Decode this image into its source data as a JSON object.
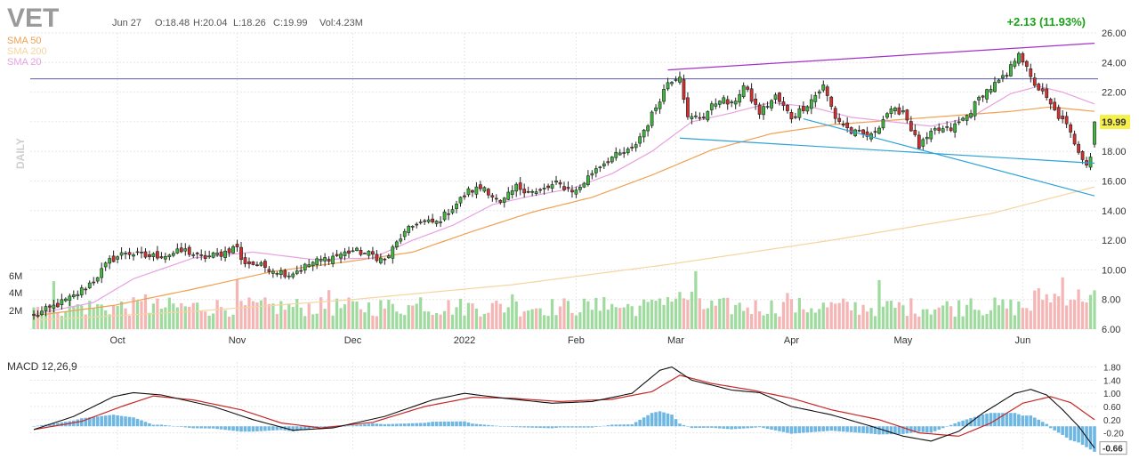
{
  "header": {
    "ticker": "VET",
    "date": "Jun 27",
    "open": "O:18.48",
    "high": "H:20.04",
    "low": "L:18.26",
    "close": "C:19.99",
    "volume": "Vol:4.23M",
    "change": "+2.13 (11.93%)"
  },
  "colors": {
    "up": "#3db83d",
    "down": "#d32f2f",
    "volume_up": "#9fdb9f",
    "volume_down": "#f5b5b5",
    "sma50": "#f0a050",
    "sma200": "#f5d5a0",
    "sma20": "#e7a2e0",
    "macd_line": "#111111",
    "signal_line": "#c62828",
    "histogram": "#6fb7e3",
    "trend_purple": "#a332c9",
    "trend_blue": "#2ea3d8",
    "horizontal_line": "#5b5ba6",
    "change_text": "#1aa31a",
    "price_badge": "#f6f04a"
  },
  "legend": [
    {
      "label": "SMA 50",
      "color": "#f0a050"
    },
    {
      "label": "SMA 200",
      "color": "#f5d5a0"
    },
    {
      "label": "SMA 20",
      "color": "#e7a2e0"
    }
  ],
  "timeframe_label": "DAILY",
  "price_axis": {
    "ticks": [
      "26.00",
      "24.00",
      "22.00",
      "20.00",
      "18.00",
      "16.00",
      "14.00",
      "12.00",
      "10.00",
      "8.00",
      "6.00"
    ],
    "current_price": "19.99",
    "min": 6,
    "max": 26
  },
  "volume_axis": {
    "ticks": [
      "6M",
      "4M",
      "2M"
    ]
  },
  "months": [
    "Oct",
    "Nov",
    "Dec",
    "2022",
    "Feb",
    "Mar",
    "Apr",
    "May",
    "Jun"
  ],
  "macd": {
    "label": "MACD 12,26,9",
    "ticks": [
      "1.80",
      "1.40",
      "1.00",
      "0.60",
      "0.20",
      "-0.20"
    ],
    "current": "-0.66"
  },
  "chart_data": {
    "type": "candlestick",
    "title": "VET",
    "price_range": [
      6,
      26
    ],
    "horizontal_level": 22.9,
    "months": [
      "Oct",
      "Nov",
      "Dec",
      "2022",
      "Feb",
      "Mar",
      "Apr",
      "May",
      "Jun"
    ],
    "close_anchors": [
      [
        0,
        6.9
      ],
      [
        4,
        7.4
      ],
      [
        10,
        8.2
      ],
      [
        15,
        9.3
      ],
      [
        19,
        10.6
      ],
      [
        23,
        11.2
      ],
      [
        28,
        10.9
      ],
      [
        33,
        11.0
      ],
      [
        38,
        11.3
      ],
      [
        42,
        10.8
      ],
      [
        47,
        11.1
      ],
      [
        51,
        11.6
      ],
      [
        52,
        10.6
      ],
      [
        58,
        10.2
      ],
      [
        64,
        9.7
      ],
      [
        70,
        10.5
      ],
      [
        75,
        10.9
      ],
      [
        80,
        11.3
      ],
      [
        85,
        11.0
      ],
      [
        88,
        10.6
      ],
      [
        92,
        12.2
      ],
      [
        96,
        13.2
      ],
      [
        101,
        13.2
      ],
      [
        105,
        14.2
      ],
      [
        109,
        15.3
      ],
      [
        113,
        15.6
      ],
      [
        117,
        14.4
      ],
      [
        121,
        15.6
      ],
      [
        126,
        15.2
      ],
      [
        131,
        15.8
      ],
      [
        136,
        15.3
      ],
      [
        141,
        16.9
      ],
      [
        145,
        17.6
      ],
      [
        150,
        18.1
      ],
      [
        154,
        19.9
      ],
      [
        159,
        22.7
      ],
      [
        162,
        23.2
      ],
      [
        164,
        20.2
      ],
      [
        168,
        20.4
      ],
      [
        172,
        21.6
      ],
      [
        175,
        21.1
      ],
      [
        178,
        22.4
      ],
      [
        182,
        20.6
      ],
      [
        186,
        21.7
      ],
      [
        190,
        20.3
      ],
      [
        194,
        21.2
      ],
      [
        198,
        22.4
      ],
      [
        201,
        20.3
      ],
      [
        205,
        19.3
      ],
      [
        210,
        19.0
      ],
      [
        214,
        20.6
      ],
      [
        218,
        20.8
      ],
      [
        222,
        18.3
      ],
      [
        226,
        19.4
      ],
      [
        230,
        19.5
      ],
      [
        234,
        20.4
      ],
      [
        238,
        21.9
      ],
      [
        241,
        22.5
      ],
      [
        244,
        23.1
      ],
      [
        247,
        24.8
      ],
      [
        250,
        22.9
      ],
      [
        253,
        21.9
      ],
      [
        256,
        20.7
      ],
      [
        259,
        19.7
      ],
      [
        262,
        18.1
      ],
      [
        264,
        17.2
      ],
      [
        265,
        17.7
      ],
      [
        266,
        19.99
      ]
    ],
    "sma20_anchors": [
      [
        0,
        7.0
      ],
      [
        15,
        7.8
      ],
      [
        25,
        9.4
      ],
      [
        40,
        10.8
      ],
      [
        55,
        11.2
      ],
      [
        70,
        10.7
      ],
      [
        85,
        10.8
      ],
      [
        95,
        12.0
      ],
      [
        105,
        13.0
      ],
      [
        115,
        14.4
      ],
      [
        125,
        15.0
      ],
      [
        135,
        15.5
      ],
      [
        145,
        16.5
      ],
      [
        155,
        18.0
      ],
      [
        165,
        20.0
      ],
      [
        175,
        20.6
      ],
      [
        185,
        21.3
      ],
      [
        195,
        21.0
      ],
      [
        205,
        20.3
      ],
      [
        215,
        20.0
      ],
      [
        225,
        19.7
      ],
      [
        235,
        20.3
      ],
      [
        245,
        21.9
      ],
      [
        252,
        22.4
      ],
      [
        258,
        22.0
      ],
      [
        266,
        21.2
      ]
    ],
    "sma50_anchors": [
      [
        0,
        6.9
      ],
      [
        20,
        7.6
      ],
      [
        40,
        8.7
      ],
      [
        60,
        9.9
      ],
      [
        80,
        10.6
      ],
      [
        95,
        11.2
      ],
      [
        110,
        12.6
      ],
      [
        125,
        13.9
      ],
      [
        140,
        14.9
      ],
      [
        155,
        16.4
      ],
      [
        170,
        18.1
      ],
      [
        185,
        19.2
      ],
      [
        200,
        19.8
      ],
      [
        215,
        20.1
      ],
      [
        230,
        20.4
      ],
      [
        245,
        20.7
      ],
      [
        255,
        21.0
      ],
      [
        266,
        20.7
      ]
    ],
    "sma200_anchors": [
      [
        0,
        6.6
      ],
      [
        40,
        7.2
      ],
      [
        80,
        8.0
      ],
      [
        120,
        9.0
      ],
      [
        160,
        10.4
      ],
      [
        200,
        12.0
      ],
      [
        240,
        13.8
      ],
      [
        266,
        15.6
      ]
    ],
    "macd_range": [
      -0.75,
      1.95
    ],
    "macd_anchors": [
      [
        0,
        -0.1
      ],
      [
        10,
        0.3
      ],
      [
        20,
        0.9
      ],
      [
        25,
        1.02
      ],
      [
        32,
        0.95
      ],
      [
        45,
        0.6
      ],
      [
        55,
        0.2
      ],
      [
        65,
        -0.12
      ],
      [
        75,
        -0.05
      ],
      [
        88,
        0.3
      ],
      [
        100,
        0.8
      ],
      [
        108,
        1.0
      ],
      [
        118,
        0.85
      ],
      [
        130,
        0.7
      ],
      [
        140,
        0.75
      ],
      [
        150,
        1.0
      ],
      [
        157,
        1.7
      ],
      [
        160,
        1.8
      ],
      [
        165,
        1.4
      ],
      [
        175,
        1.1
      ],
      [
        182,
        1.02
      ],
      [
        190,
        0.6
      ],
      [
        200,
        0.35
      ],
      [
        210,
        0.0
      ],
      [
        218,
        -0.3
      ],
      [
        225,
        -0.45
      ],
      [
        232,
        -0.15
      ],
      [
        238,
        0.4
      ],
      [
        246,
        1.0
      ],
      [
        250,
        1.12
      ],
      [
        254,
        0.95
      ],
      [
        258,
        0.5
      ],
      [
        262,
        0.0
      ],
      [
        266,
        -0.66
      ]
    ],
    "signal_anchors": [
      [
        0,
        -0.1
      ],
      [
        12,
        0.15
      ],
      [
        22,
        0.6
      ],
      [
        30,
        0.92
      ],
      [
        40,
        0.8
      ],
      [
        52,
        0.5
      ],
      [
        62,
        0.1
      ],
      [
        72,
        -0.05
      ],
      [
        85,
        0.12
      ],
      [
        98,
        0.6
      ],
      [
        110,
        0.88
      ],
      [
        120,
        0.85
      ],
      [
        132,
        0.75
      ],
      [
        145,
        0.82
      ],
      [
        155,
        1.05
      ],
      [
        162,
        1.55
      ],
      [
        170,
        1.3
      ],
      [
        180,
        1.1
      ],
      [
        190,
        0.85
      ],
      [
        200,
        0.5
      ],
      [
        212,
        0.2
      ],
      [
        222,
        -0.2
      ],
      [
        232,
        -0.3
      ],
      [
        240,
        0.1
      ],
      [
        248,
        0.7
      ],
      [
        255,
        0.9
      ],
      [
        260,
        0.72
      ],
      [
        266,
        0.2
      ]
    ],
    "trendlines": [
      {
        "name": "upper",
        "from": [
          159,
          23.5
        ],
        "to": [
          266,
          25.3
        ]
      },
      {
        "name": "lower-a",
        "from": [
          162,
          18.9
        ],
        "to": [
          266,
          17.2
        ]
      },
      {
        "name": "lower-b",
        "from": [
          193,
          20.2
        ],
        "to": [
          266,
          15.0
        ]
      }
    ]
  }
}
